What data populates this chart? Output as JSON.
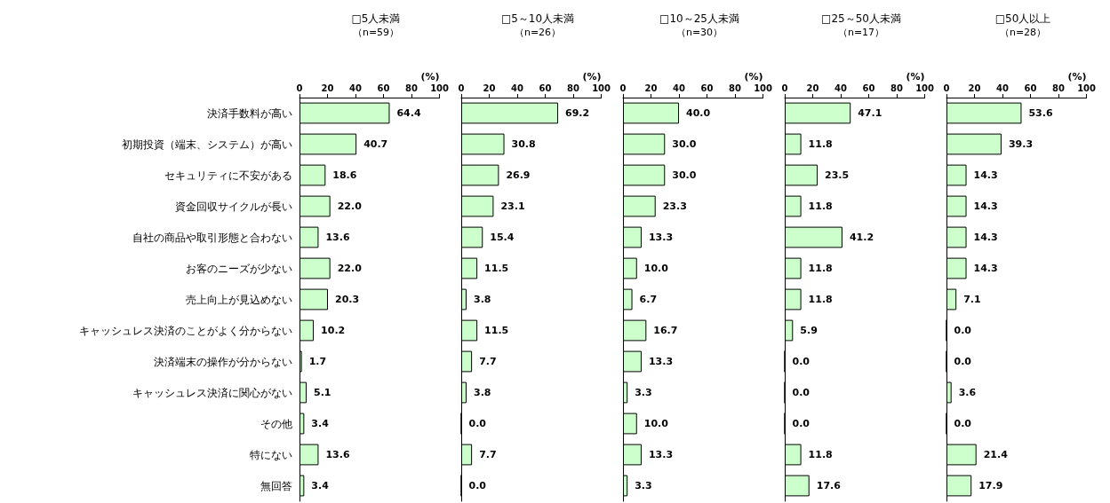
{
  "chart_data": [
    {
      "type": "bar",
      "orientation": "horizontal",
      "title": "□5人未満",
      "subtitle": "（n=59）",
      "xlabel": "(%)",
      "categories": [
        "決済手数料が高い",
        "初期投資（端末、システム）が高い",
        "セキュリティに不安がある",
        "資金回収サイクルが長い",
        "自社の商品や取引形態と合わない",
        "お客のニーズが少ない",
        "売上向上が見込めない",
        "キャッシュレス決済のことがよく分からない",
        "決済端末の操作が分からない",
        "キャッシュレス決済に関心がない",
        "その他",
        "特にない",
        "無回答"
      ],
      "values": [
        64.4,
        40.7,
        18.6,
        22.0,
        13.6,
        22.0,
        20.3,
        10.2,
        1.7,
        5.1,
        3.4,
        13.6,
        3.4
      ],
      "value_labels": [
        "64.4",
        "40.7",
        "18.6",
        "22.0",
        "13.6",
        "22.0",
        "20.3",
        "10.2",
        "1.7",
        "5.1",
        "3.4",
        "13.6",
        "3.4"
      ],
      "color": "#ccffcc",
      "xlim": [
        0,
        100
      ],
      "xticks": [
        0,
        20,
        40,
        60,
        80,
        100
      ]
    },
    {
      "type": "bar",
      "orientation": "horizontal",
      "title": "□5～10人未満",
      "subtitle": "（n=26）",
      "xlabel": "(%)",
      "categories": [
        null,
        null,
        null,
        null,
        null,
        null,
        null,
        null,
        null,
        null,
        null,
        null,
        null
      ],
      "values": [
        69.2,
        30.8,
        26.9,
        23.1,
        15.4,
        11.5,
        3.8,
        11.5,
        7.7,
        3.8,
        0.0,
        7.7,
        0.0
      ],
      "value_labels": [
        "69.2",
        "30.8",
        "26.9",
        "23.1",
        "15.4",
        "11.5",
        "3.8",
        "11.5",
        "7.7",
        "3.8",
        "0.0",
        "7.7",
        "0.0"
      ],
      "color": "#ccffcc",
      "xlim": [
        0,
        100
      ],
      "xticks": [
        0,
        20,
        40,
        60,
        80,
        100
      ],
      "tick_labels": "x"
    },
    {
      "type": "bar",
      "orientation": "horizontal",
      "title": "□10～25人未満",
      "subtitle": "（n=30）",
      "xlabel": "(%)",
      "categories": [
        null,
        null,
        null,
        null,
        null,
        null,
        null,
        null,
        null,
        null,
        null,
        null,
        null
      ],
      "values": [
        40.0,
        30.0,
        30.0,
        23.3,
        13.3,
        10.0,
        6.7,
        16.7,
        13.3,
        3.3,
        10.0,
        13.3,
        3.3
      ],
      "value_labels": [
        "40.0",
        "30.0",
        "30.0",
        "23.3",
        "13.3",
        "10.0",
        "6.7",
        "16.7",
        "13.3",
        "3.3",
        "10.0",
        "13.3",
        "3.3"
      ],
      "color": "#ccffcc",
      "xlim": [
        0,
        100
      ],
      "xticks": [
        0,
        20,
        40,
        60,
        80,
        100
      ],
      "tick_labels": "x"
    },
    {
      "type": "bar",
      "orientation": "horizontal",
      "title": "□25～50人未満",
      "subtitle": "（n=17）",
      "xlabel": "(%)",
      "categories": [
        null,
        null,
        null,
        null,
        null,
        null,
        null,
        null,
        null,
        null,
        null,
        null,
        null
      ],
      "values": [
        47.1,
        11.8,
        23.5,
        11.8,
        41.2,
        11.8,
        11.8,
        5.9,
        0.0,
        0.0,
        0.0,
        11.8,
        17.6
      ],
      "value_labels": [
        "47.1",
        "11.8",
        "23.5",
        "11.8",
        "41.2",
        "11.8",
        "11.8",
        "5.9",
        "0.0",
        "0.0",
        "0.0",
        "11.8",
        "17.6"
      ],
      "color": "#ccffcc",
      "xlim": [
        0,
        100
      ],
      "xticks": [
        0,
        20,
        40,
        60,
        80,
        100
      ],
      "tick_labels": "x"
    },
    {
      "type": "bar",
      "orientation": "horizontal",
      "title": "□50人以上",
      "subtitle": "（n=28）",
      "xlabel": "(%)",
      "categories": [
        null,
        null,
        null,
        null,
        null,
        null,
        null,
        null,
        null,
        null,
        null,
        null,
        null
      ],
      "values": [
        53.6,
        39.3,
        14.3,
        14.3,
        14.3,
        14.3,
        7.1,
        0.0,
        0.0,
        3.6,
        0.0,
        21.4,
        17.9
      ],
      "value_labels": [
        "53.6",
        "39.3",
        "14.3",
        "14.3",
        "14.3",
        "14.3",
        "7.1",
        "0.0",
        "0.0",
        "3.6",
        "0.0",
        "21.4",
        "17.9"
      ],
      "color": "#ccffcc",
      "xlim": [
        0,
        100
      ],
      "xticks": [
        0,
        20,
        40,
        60,
        80,
        100
      ],
      "tick_labels": "x"
    }
  ]
}
